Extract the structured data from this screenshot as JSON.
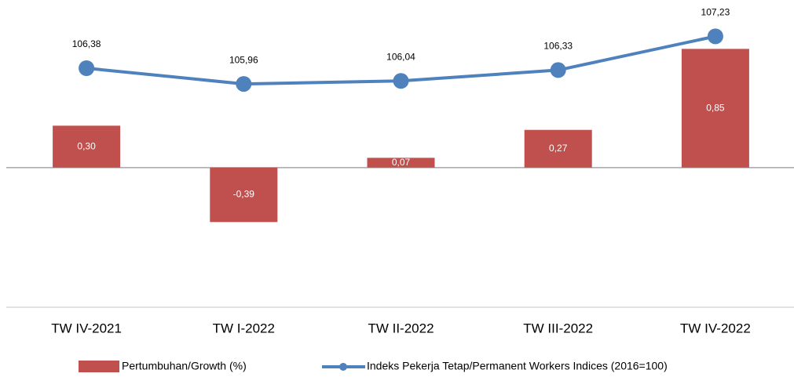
{
  "chart_data": {
    "type": "bar_line",
    "categories": [
      "TW IV-2021",
      "TW I-2022",
      "TW II-2022",
      "TW III-2022",
      "TW IV-2022"
    ],
    "series": [
      {
        "name": "Pertumbuhan/Growth (%)",
        "type": "bar",
        "color": "#c0504d",
        "values": [
          0.3,
          -0.39,
          0.07,
          0.27,
          0.85
        ],
        "value_labels": [
          "0,30",
          "-0,39",
          "0,07",
          "0,27",
          "0,85"
        ]
      },
      {
        "name": "Indeks Pekerja Tetap/Permanent Workers Indices (2016=100)",
        "type": "line",
        "axis": "y2",
        "color": "#4f81bd",
        "values": [
          106.38,
          105.96,
          106.04,
          106.33,
          107.23
        ],
        "value_labels": [
          "106,38",
          "105,96",
          "106,04",
          "106,33",
          "107,23"
        ]
      }
    ],
    "ylim": [
      -1,
      1.2
    ],
    "y2lim": [
      100,
      108.2
    ],
    "legend": "bottom"
  }
}
